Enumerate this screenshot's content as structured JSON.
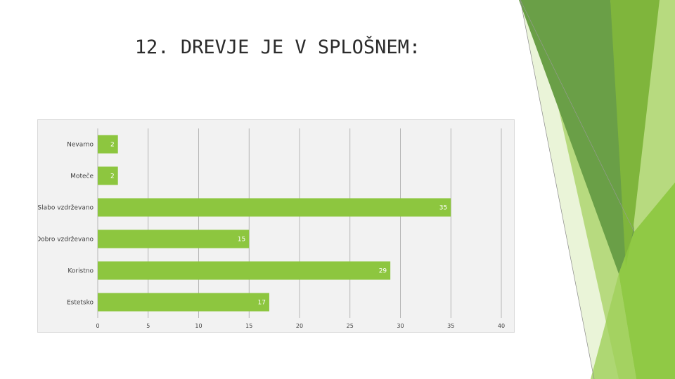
{
  "slide": {
    "title": "12. DREVJE JE V SPLOŠNEM:"
  },
  "colors": {
    "bar": "#8dc63f",
    "deco_dark": "#5a9e32",
    "deco_mid": "#7ab648",
    "deco_light": "#a6d162",
    "deco_pale": "#d4e9b0"
  },
  "chart_data": {
    "type": "bar",
    "orientation": "horizontal",
    "title": "",
    "xlabel": "",
    "ylabel": "",
    "categories": [
      "Nevarno",
      "Moteče",
      "Slabo vzdrževano",
      "Dobro vzdrževano",
      "Koristno",
      "Estetsko"
    ],
    "values": [
      2,
      2,
      35,
      15,
      29,
      17
    ],
    "xlim": [
      0,
      40
    ],
    "xticks": [
      0,
      5,
      10,
      15,
      20,
      25,
      30,
      35,
      40
    ],
    "grid": "vertical",
    "legend": "none",
    "data_labels": true
  }
}
